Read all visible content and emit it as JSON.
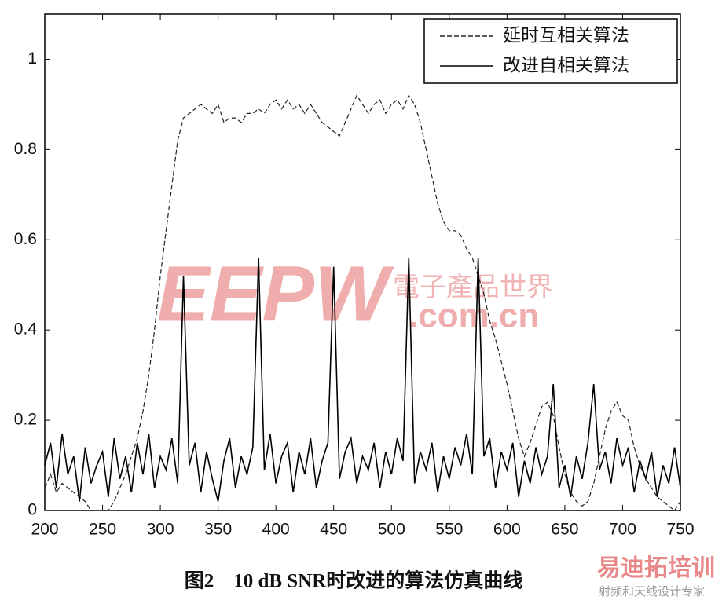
{
  "chart_data": {
    "type": "line",
    "caption": "图2　10 dB SNR时改进的算法仿真曲线",
    "xlim": [
      200,
      750
    ],
    "xticks": [
      200,
      250,
      300,
      350,
      400,
      450,
      500,
      550,
      600,
      650,
      700,
      750
    ],
    "ylim": [
      0,
      1.1
    ],
    "yticks": [
      0,
      0.2,
      0.4,
      0.6,
      0.8,
      1
    ],
    "legend": "upper right",
    "x": [
      200,
      205,
      210,
      215,
      220,
      225,
      230,
      235,
      240,
      245,
      250,
      255,
      260,
      265,
      270,
      275,
      280,
      285,
      290,
      295,
      300,
      305,
      310,
      315,
      320,
      325,
      330,
      335,
      340,
      345,
      350,
      355,
      360,
      365,
      370,
      375,
      380,
      385,
      390,
      395,
      400,
      405,
      410,
      415,
      420,
      425,
      430,
      435,
      440,
      445,
      450,
      455,
      460,
      465,
      470,
      475,
      480,
      485,
      490,
      495,
      500,
      505,
      510,
      515,
      520,
      525,
      530,
      535,
      540,
      545,
      550,
      555,
      560,
      565,
      570,
      575,
      580,
      585,
      590,
      595,
      600,
      605,
      610,
      615,
      620,
      625,
      630,
      635,
      640,
      645,
      650,
      655,
      660,
      665,
      670,
      675,
      680,
      685,
      690,
      695,
      700,
      705,
      710,
      715,
      720,
      725,
      730,
      735,
      740,
      745,
      750
    ],
    "series": [
      {
        "name": "延时互相关算法",
        "color": "#222222",
        "style": "dashed",
        "values": [
          0.05,
          0.08,
          0.04,
          0.06,
          0.05,
          0.04,
          0.03,
          0.02,
          0.0,
          0.0,
          0.0,
          0.0,
          0.02,
          0.05,
          0.08,
          0.12,
          0.16,
          0.22,
          0.3,
          0.4,
          0.52,
          0.62,
          0.72,
          0.82,
          0.87,
          0.88,
          0.89,
          0.9,
          0.89,
          0.88,
          0.9,
          0.86,
          0.87,
          0.87,
          0.86,
          0.88,
          0.88,
          0.89,
          0.88,
          0.9,
          0.91,
          0.89,
          0.91,
          0.89,
          0.9,
          0.88,
          0.9,
          0.88,
          0.86,
          0.85,
          0.84,
          0.83,
          0.86,
          0.89,
          0.92,
          0.9,
          0.88,
          0.9,
          0.91,
          0.88,
          0.9,
          0.91,
          0.89,
          0.92,
          0.9,
          0.86,
          0.8,
          0.74,
          0.68,
          0.64,
          0.62,
          0.62,
          0.61,
          0.58,
          0.56,
          0.52,
          0.48,
          0.42,
          0.38,
          0.33,
          0.28,
          0.22,
          0.16,
          0.12,
          0.15,
          0.19,
          0.23,
          0.24,
          0.21,
          0.14,
          0.08,
          0.04,
          0.02,
          0.01,
          0.02,
          0.06,
          0.12,
          0.18,
          0.22,
          0.24,
          0.21,
          0.2,
          0.14,
          0.1,
          0.07,
          0.05,
          0.03,
          0.02,
          0.01,
          0.0,
          0.02
        ]
      },
      {
        "name": "改进自相关算法",
        "color": "#000000",
        "style": "solid",
        "values": [
          0.1,
          0.15,
          0.05,
          0.17,
          0.08,
          0.12,
          0.02,
          0.14,
          0.06,
          0.1,
          0.13,
          0.03,
          0.16,
          0.07,
          0.12,
          0.04,
          0.15,
          0.08,
          0.17,
          0.05,
          0.12,
          0.09,
          0.16,
          0.06,
          0.52,
          0.1,
          0.15,
          0.04,
          0.13,
          0.07,
          0.02,
          0.11,
          0.16,
          0.05,
          0.12,
          0.08,
          0.14,
          0.56,
          0.09,
          0.17,
          0.06,
          0.12,
          0.15,
          0.04,
          0.13,
          0.08,
          0.16,
          0.05,
          0.11,
          0.15,
          0.54,
          0.07,
          0.13,
          0.16,
          0.06,
          0.12,
          0.09,
          0.15,
          0.05,
          0.13,
          0.08,
          0.16,
          0.11,
          0.56,
          0.06,
          0.13,
          0.09,
          0.15,
          0.04,
          0.12,
          0.07,
          0.14,
          0.1,
          0.17,
          0.08,
          0.56,
          0.12,
          0.16,
          0.05,
          0.13,
          0.09,
          0.15,
          0.03,
          0.11,
          0.06,
          0.14,
          0.08,
          0.12,
          0.28,
          0.05,
          0.1,
          0.03,
          0.12,
          0.07,
          0.15,
          0.28,
          0.09,
          0.13,
          0.06,
          0.16,
          0.1,
          0.14,
          0.04,
          0.11,
          0.07,
          0.13,
          0.03,
          0.1,
          0.06,
          0.14,
          0.05
        ]
      }
    ],
    "watermark": {
      "logo": "EEPW",
      "name": "電子產品世界",
      "domain": ".com.cn",
      "brand": "易迪拓培训",
      "slogan": "射频和天线设计专家"
    }
  }
}
